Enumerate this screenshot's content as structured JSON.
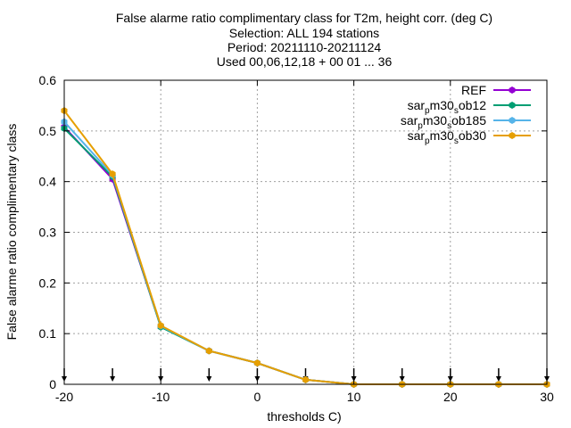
{
  "title": {
    "line1": "False alarme ratio complimentary class  for T2m, height corr. (deg C)",
    "line2": "Selection: ALL    194 stations",
    "line3": "Period: 20211110-20211124",
    "line4": "Used 00,06,12,18 + 00 01 ... 36"
  },
  "chart_data": {
    "type": "line",
    "xlabel": "thresholds C)",
    "ylabel": "False alarme ratio complimentary class",
    "xlim": [
      -20,
      30
    ],
    "ylim": [
      0,
      0.6
    ],
    "xticks": [
      -20,
      -10,
      0,
      10,
      20,
      30
    ],
    "yticks": [
      0,
      0.1,
      0.2,
      0.3,
      0.4,
      0.5,
      0.6
    ],
    "grid": true,
    "legend_position": "top-right",
    "x": [
      -20,
      -15,
      -10,
      -5,
      0,
      5,
      10,
      15,
      20,
      25,
      30
    ],
    "series": [
      {
        "name": "REF",
        "sub": "",
        "color": "#9400d3",
        "values": [
          0.508,
          0.405,
          0.114,
          0.066,
          0.042,
          0.009,
          0.0,
          0.0,
          0.0,
          0.0,
          0.0
        ]
      },
      {
        "name": "sar",
        "sub": "pm30sob12",
        "color": "#009e73",
        "values": [
          0.505,
          0.41,
          0.113,
          0.066,
          0.042,
          0.009,
          0.0,
          0.0,
          0.0,
          0.0,
          0.0
        ]
      },
      {
        "name": "sar",
        "sub": "pm30sob185",
        "color": "#56b4e9",
        "values": [
          0.518,
          0.413,
          0.115,
          0.066,
          0.042,
          0.009,
          0.0,
          0.0,
          0.0,
          0.0,
          0.0
        ]
      },
      {
        "name": "sar",
        "sub": "pm30sob30",
        "color": "#e69f00",
        "values": [
          0.54,
          0.415,
          0.116,
          0.066,
          0.042,
          0.009,
          0.0,
          0.0,
          0.0,
          0.0,
          0.0
        ]
      }
    ],
    "legend_labels": [
      {
        "parts": [
          [
            "REF",
            "n"
          ]
        ]
      },
      {
        "parts": [
          [
            "sar",
            "n"
          ],
          [
            "p",
            "sub"
          ],
          [
            "m30",
            "n"
          ],
          [
            "s",
            "sub"
          ],
          [
            "ob12",
            "n"
          ]
        ]
      },
      {
        "parts": [
          [
            "sar",
            "n"
          ],
          [
            "p",
            "sub"
          ],
          [
            "m30",
            "n"
          ],
          [
            "s",
            "sub"
          ],
          [
            "ob185",
            "n"
          ]
        ]
      },
      {
        "parts": [
          [
            "sar",
            "n"
          ],
          [
            "p",
            "sub"
          ],
          [
            "m30",
            "n"
          ],
          [
            "s",
            "sub"
          ],
          [
            "ob30",
            "n"
          ]
        ]
      }
    ],
    "arrow_markers_x": [
      -20,
      -15,
      -10,
      -5,
      0,
      5,
      10,
      15,
      20,
      25,
      30
    ]
  }
}
